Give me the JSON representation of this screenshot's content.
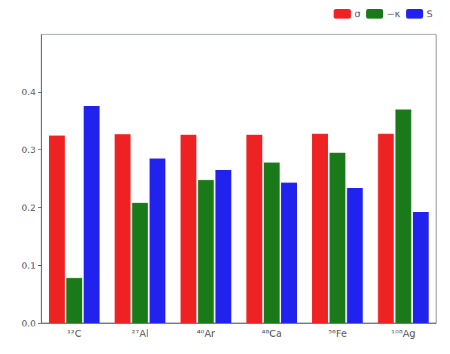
{
  "chart_data": {
    "type": "bar",
    "categories": [
      "¹²C",
      "²⁷Al",
      "⁴⁰Ar",
      "⁴⁸Ca",
      "⁵⁶Fe",
      "¹⁰⁸Ag"
    ],
    "series": [
      {
        "name": "σ",
        "color": "#ee2222",
        "values": [
          0.325,
          0.327,
          0.326,
          0.326,
          0.328,
          0.328
        ]
      },
      {
        "name": "−κ",
        "color": "#1a7a1a",
        "values": [
          0.078,
          0.208,
          0.248,
          0.278,
          0.295,
          0.37
        ]
      },
      {
        "name": "S",
        "color": "#2222ee",
        "values": [
          0.376,
          0.285,
          0.265,
          0.243,
          0.234,
          0.192
        ]
      }
    ],
    "ylim": [
      0.0,
      0.5
    ],
    "yticks": [
      {
        "value": 0.0,
        "label": "0.0"
      },
      0.1,
      0.2,
      0.3,
      0.4
    ],
    "grid": false,
    "legend": "upper right"
  }
}
